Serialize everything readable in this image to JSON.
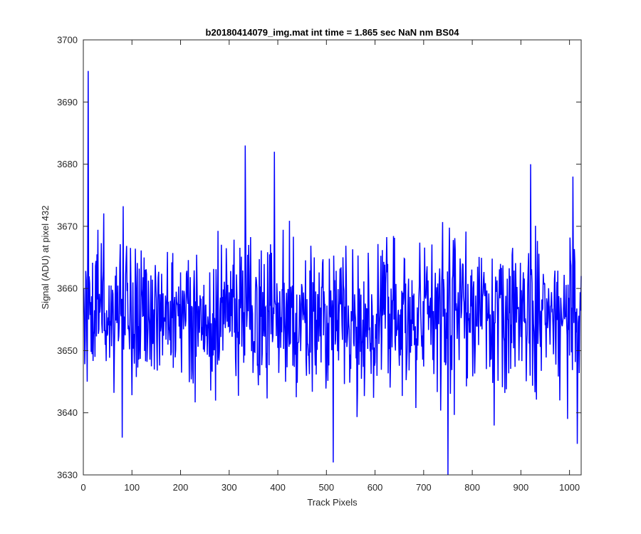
{
  "chart_data": {
    "type": "line",
    "title": "b20180414079_img.mat int time = 1.865 sec  NaN nm BS04",
    "xlabel": "Track Pixels",
    "ylabel": "Signal (ADU) at pixel 432",
    "xlim": [
      0,
      1024
    ],
    "ylim": [
      3630,
      3700
    ],
    "xticks": [
      0,
      100,
      200,
      300,
      400,
      500,
      600,
      700,
      800,
      900,
      1000
    ],
    "yticks": [
      3630,
      3640,
      3650,
      3660,
      3670,
      3680,
      3690,
      3700
    ],
    "grid": false,
    "legend": "none",
    "line_color": "#0000ff",
    "series": [
      {
        "n_points": 1024,
        "x_start": 1,
        "x_step": 1,
        "approx_mean": 3656,
        "approx_std": 6,
        "notable_points": [
          {
            "x": 1,
            "y": 3660
          },
          {
            "x": 8,
            "y": 3645
          },
          {
            "x": 10,
            "y": 3695
          },
          {
            "x": 11,
            "y": 3655
          },
          {
            "x": 80,
            "y": 3636
          },
          {
            "x": 333,
            "y": 3683
          },
          {
            "x": 393,
            "y": 3682
          },
          {
            "x": 514,
            "y": 3632
          },
          {
            "x": 750,
            "y": 3630
          },
          {
            "x": 920,
            "y": 3680
          },
          {
            "x": 1016,
            "y": 3635
          },
          {
            "x": 1024,
            "y": 3662
          }
        ]
      }
    ]
  }
}
